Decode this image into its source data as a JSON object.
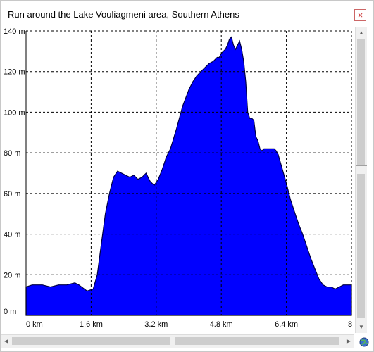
{
  "window": {
    "title": "Run around the Lake Vouliagmeni area, Southern Athens",
    "close_label": "×"
  },
  "chart_data": {
    "type": "area",
    "title": "Run around the Lake Vouliagmeni area, Southern Athens",
    "xlabel": "",
    "ylabel": "",
    "x_unit": "km",
    "y_unit": "m",
    "xlim": [
      0,
      8
    ],
    "ylim": [
      0,
      140
    ],
    "x_ticks": [
      "0 km",
      "1.6 km",
      "3.2 km",
      "4.8 km",
      "6.4 km",
      "8"
    ],
    "y_ticks": [
      "0 m",
      "20 m",
      "40 m",
      "60 m",
      "80 m",
      "100 m",
      "120 m",
      "140 m"
    ],
    "grid": true,
    "fill_color": "#0000ff",
    "series": [
      {
        "x": [
          0,
          0.15,
          0.4,
          0.6,
          0.8,
          1.0,
          1.2,
          1.3,
          1.5,
          1.65,
          1.75,
          1.85,
          1.95,
          2.05,
          2.15,
          2.25,
          2.35,
          2.45,
          2.55,
          2.65,
          2.75,
          2.85,
          2.95,
          3.05,
          3.15,
          3.25,
          3.35,
          3.45,
          3.55,
          3.7,
          3.85,
          4.0,
          4.1,
          4.2,
          4.3,
          4.4,
          4.5,
          4.6,
          4.65,
          4.7,
          4.75,
          4.8,
          4.85,
          4.9,
          4.95,
          5.0,
          5.05,
          5.1,
          5.15,
          5.2,
          5.25,
          5.3,
          5.35,
          5.4,
          5.45,
          5.5,
          5.55,
          5.6,
          5.65,
          5.7,
          5.75,
          5.8,
          5.85,
          5.9,
          5.95,
          6.0,
          6.05,
          6.1,
          6.15,
          6.2,
          6.3,
          6.4,
          6.5,
          6.6,
          6.7,
          6.8,
          6.9,
          7.0,
          7.1,
          7.2,
          7.3,
          7.4,
          7.5,
          7.6,
          7.7,
          7.8,
          7.9,
          7.95,
          8.0
        ],
        "y": [
          14,
          15,
          15,
          14,
          15,
          15,
          16,
          15,
          12,
          13,
          20,
          35,
          50,
          60,
          68,
          71,
          70,
          69,
          68,
          69,
          67,
          68,
          70,
          66,
          64,
          67,
          72,
          78,
          82,
          92,
          103,
          111,
          115,
          118,
          120,
          122,
          124,
          125,
          126,
          127,
          127,
          129,
          130,
          131,
          133,
          136,
          137,
          133,
          131,
          133,
          135,
          131,
          125,
          115,
          100,
          97,
          97,
          96,
          88,
          86,
          82,
          81,
          82,
          82,
          82,
          82,
          82,
          82,
          81,
          79,
          72,
          65,
          57,
          51,
          45,
          40,
          34,
          28,
          23,
          18,
          15,
          14,
          14,
          13,
          14,
          15,
          15,
          15,
          15
        ]
      }
    ]
  }
}
